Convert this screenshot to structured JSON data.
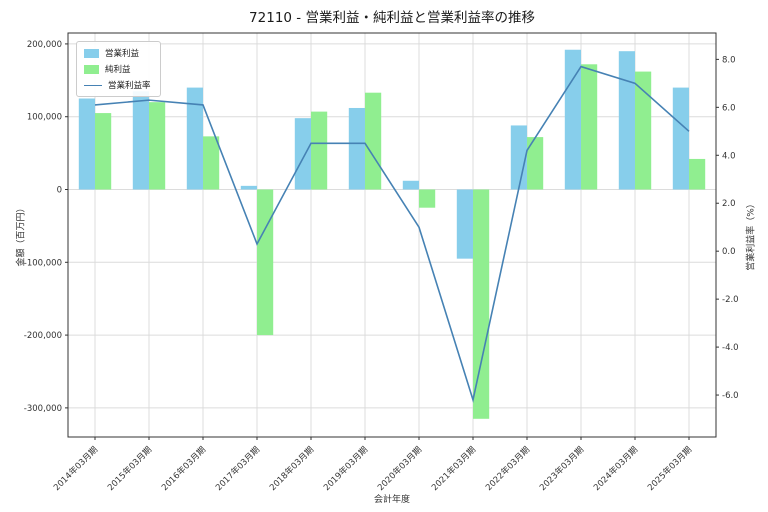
{
  "chart_data": {
    "type": "combo-bar-line",
    "title": "72110 - 営業利益・純利益と営業利益率の推移",
    "xlabel": "会計年度",
    "ylabel_left": "金額（百万円）",
    "ylabel_right": "営業利益率（%）",
    "grid": true,
    "legend_position": "upper left",
    "categories": [
      "2014年03月期",
      "2015年03月期",
      "2016年03月期",
      "2017年03月期",
      "2018年03月期",
      "2019年03月期",
      "2020年03月期",
      "2021年03月期",
      "2022年03月期",
      "2023年03月期",
      "2024年03月期",
      "2025年03月期"
    ],
    "series": [
      {
        "name": "営業利益",
        "type": "bar",
        "axis": "left",
        "color": "#87CEEB",
        "values": [
          125000,
          135000,
          140000,
          5000,
          98000,
          112000,
          12000,
          -95000,
          88000,
          192000,
          190000,
          140000
        ]
      },
      {
        "name": "純利益",
        "type": "bar",
        "axis": "left",
        "color": "#90EE90",
        "values": [
          105000,
          120000,
          73000,
          -200000,
          107000,
          133000,
          -25000,
          -315000,
          72000,
          172000,
          162000,
          42000
        ]
      },
      {
        "name": "営業利益率",
        "type": "line",
        "axis": "right",
        "color": "#4682B4",
        "values": [
          6.1,
          6.3,
          6.1,
          0.3,
          4.5,
          4.5,
          1.0,
          -6.2,
          4.2,
          7.7,
          7.0,
          5.0
        ]
      }
    ],
    "yticks_left": [
      200000,
      100000,
      0,
      -100000,
      -200000,
      -300000
    ],
    "yticks_right": [
      8.0,
      6.0,
      4.0,
      2.0,
      0.0,
      -2.0,
      -4.0,
      -6.0
    ],
    "ylim_left": [
      -340000,
      215000
    ],
    "ylim_right": [
      -7.75,
      9.1
    ]
  }
}
